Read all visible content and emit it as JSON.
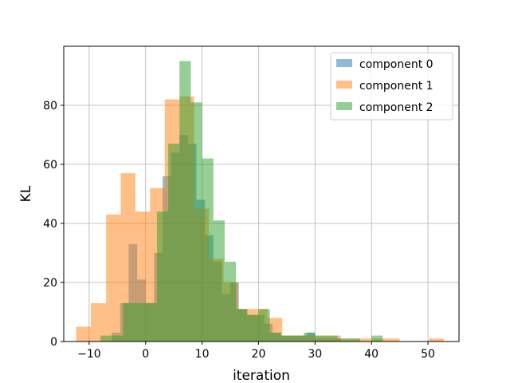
{
  "chart_data": {
    "type": "bar",
    "subtype": "overlapping-histogram",
    "xlabel": "iteration",
    "ylabel": "KL",
    "xlim": [
      -14.5,
      55.5
    ],
    "ylim": [
      0,
      100
    ],
    "xticks": [
      -10,
      0,
      10,
      20,
      30,
      40,
      50
    ],
    "yticks": [
      0,
      20,
      40,
      60,
      80
    ],
    "grid": true,
    "legend_position": "top-right",
    "series": [
      {
        "name": "component 0",
        "color": "#1f77b4",
        "alpha": 0.5,
        "bins": [
          [
            -6,
            -4.5,
            3
          ],
          [
            -4.5,
            -3,
            13
          ],
          [
            -3,
            -1.5,
            33
          ],
          [
            -1.5,
            0,
            21
          ],
          [
            0,
            1.5,
            13
          ],
          [
            1.5,
            3,
            30
          ],
          [
            3,
            4.5,
            56
          ],
          [
            4.5,
            6,
            64
          ],
          [
            6,
            7.5,
            70
          ],
          [
            7.5,
            9,
            67
          ],
          [
            9,
            10.5,
            48
          ],
          [
            10.5,
            12,
            36
          ],
          [
            12,
            13.5,
            27
          ],
          [
            13.5,
            15,
            16
          ],
          [
            15,
            16.5,
            20
          ],
          [
            16.5,
            18,
            11
          ],
          [
            18,
            19.5,
            9
          ],
          [
            19.5,
            21,
            9
          ],
          [
            21,
            22.5,
            6
          ],
          [
            22.5,
            24,
            3
          ],
          [
            24,
            25.5,
            2
          ],
          [
            25.5,
            27,
            2
          ],
          [
            27,
            28.5,
            2
          ],
          [
            28.5,
            30,
            3
          ],
          [
            30,
            31.5,
            1
          ],
          [
            31.5,
            33,
            1
          ],
          [
            33,
            34.5,
            1
          ]
        ]
      },
      {
        "name": "component 1",
        "color": "#ff7f0e",
        "alpha": 0.5,
        "bins": [
          [
            -12.3,
            -9.7,
            5
          ],
          [
            -9.7,
            -7.0,
            13
          ],
          [
            -7.0,
            -4.4,
            43
          ],
          [
            -4.4,
            -1.8,
            57
          ],
          [
            -1.8,
            0.8,
            44
          ],
          [
            0.8,
            3.4,
            52
          ],
          [
            3.4,
            6.0,
            82
          ],
          [
            6.0,
            8.6,
            83
          ],
          [
            8.6,
            11.2,
            45
          ],
          [
            11.2,
            13.8,
            28
          ],
          [
            13.8,
            16.4,
            20
          ],
          [
            16.4,
            19.0,
            11
          ],
          [
            19.0,
            21.6,
            11
          ],
          [
            21.6,
            24.2,
            8
          ],
          [
            24.2,
            26.8,
            2
          ],
          [
            26.8,
            29.4,
            2
          ],
          [
            29.4,
            32.0,
            2
          ],
          [
            32.0,
            34.6,
            2
          ],
          [
            34.6,
            37.2,
            1
          ],
          [
            37.2,
            39.8,
            1
          ],
          [
            39.8,
            42.4,
            1
          ],
          [
            42.4,
            45.0,
            1
          ],
          [
            45.0,
            47.6,
            0
          ],
          [
            47.6,
            50.2,
            0
          ],
          [
            50.2,
            52.8,
            1
          ]
        ]
      },
      {
        "name": "component 2",
        "color": "#2ca02c",
        "alpha": 0.5,
        "bins": [
          [
            -8,
            -6,
            2
          ],
          [
            -6,
            -4,
            2
          ],
          [
            -4,
            -2,
            13
          ],
          [
            -2,
            0,
            13
          ],
          [
            0,
            2,
            13
          ],
          [
            2,
            4,
            44
          ],
          [
            4,
            6,
            67
          ],
          [
            6,
            8,
            95
          ],
          [
            8,
            10,
            81
          ],
          [
            10,
            12,
            62
          ],
          [
            12,
            14,
            41
          ],
          [
            14,
            16,
            27
          ],
          [
            16,
            18,
            11
          ],
          [
            18,
            20,
            9
          ],
          [
            20,
            22,
            11
          ],
          [
            22,
            24,
            3
          ],
          [
            24,
            26,
            2
          ],
          [
            26,
            28,
            2
          ],
          [
            28,
            30,
            3
          ],
          [
            30,
            32,
            2
          ],
          [
            32,
            34,
            2
          ],
          [
            34,
            36,
            1
          ],
          [
            36,
            38,
            1
          ],
          [
            38,
            40,
            0
          ],
          [
            40,
            42,
            2
          ]
        ]
      }
    ]
  }
}
